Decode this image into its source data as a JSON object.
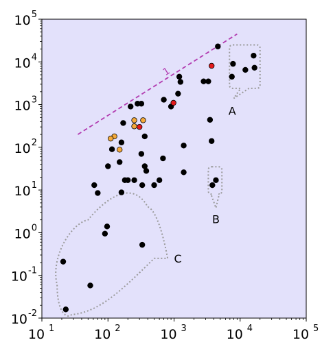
{
  "chart_data": {
    "type": "scatter",
    "title": "",
    "xlabel": "",
    "ylabel": "",
    "xscale": "log",
    "yscale": "log",
    "xlim": [
      10,
      100000
    ],
    "ylim": [
      0.01,
      100000
    ],
    "grid": false,
    "x_ticks": [
      {
        "label": "10",
        "exp": "1",
        "value": 10
      },
      {
        "label": "10",
        "exp": "2",
        "value": 100
      },
      {
        "label": "10",
        "exp": "3",
        "value": 1000
      },
      {
        "label": "10",
        "exp": "4",
        "value": 10000
      },
      {
        "label": "10",
        "exp": "5",
        "value": 100000
      }
    ],
    "y_ticks": [
      {
        "label": "10",
        "exp": "-2",
        "value": 0.01
      },
      {
        "label": "10",
        "exp": "-1",
        "value": 0.1
      },
      {
        "label": "10",
        "exp": "0",
        "value": 1
      },
      {
        "label": "10",
        "exp": "1",
        "value": 10
      },
      {
        "label": "10",
        "exp": "2",
        "value": 100
      },
      {
        "label": "10",
        "exp": "3",
        "value": 1000
      },
      {
        "label": "10",
        "exp": "4",
        "value": 10000
      },
      {
        "label": "10",
        "exp": "5",
        "value": 100000
      }
    ],
    "colors": {
      "background": "#e3e1fb",
      "black": "#000000",
      "orange": "#f4a93a",
      "red": "#e31a1c",
      "line": "#b23bb0",
      "callout": "#9a9a9a"
    },
    "series": [
      {
        "color": "black",
        "points": [
          [
            4600,
            23000
          ],
          [
            16000,
            14000
          ],
          [
            7800,
            9000
          ],
          [
            12000,
            6500
          ],
          [
            16500,
            7300
          ],
          [
            7500,
            4500
          ],
          [
            1200,
            4500
          ],
          [
            1250,
            3400
          ],
          [
            2800,
            3500
          ],
          [
            3300,
            3500
          ],
          [
            1150,
            1800
          ],
          [
            700,
            1300
          ],
          [
            900,
            900
          ],
          [
            280,
            1050
          ],
          [
            320,
            1050
          ],
          [
            220,
            900
          ],
          [
            170,
            370
          ],
          [
            360,
            180
          ],
          [
            3500,
            440
          ],
          [
            3700,
            140
          ],
          [
            115,
            90
          ],
          [
            160,
            130
          ],
          [
            320,
            70
          ],
          [
            360,
            36
          ],
          [
            380,
            28
          ],
          [
            150,
            45
          ],
          [
            100,
            36
          ],
          [
            680,
            55
          ],
          [
            1400,
            110
          ],
          [
            1400,
            26
          ],
          [
            180,
            17
          ],
          [
            200,
            17
          ],
          [
            250,
            17
          ],
          [
            600,
            17
          ],
          [
            500,
            13
          ],
          [
            330,
            13
          ],
          [
            62,
            13
          ],
          [
            160,
            8.8
          ],
          [
            70,
            8.5
          ],
          [
            3800,
            13
          ],
          [
            4300,
            17
          ],
          [
            97,
            1.4
          ],
          [
            90,
            0.95
          ],
          [
            330,
            0.52
          ],
          [
            21,
            0.21
          ],
          [
            54,
            0.058
          ],
          [
            23,
            0.016
          ]
        ]
      },
      {
        "color": "orange",
        "points": [
          [
            125,
            180
          ],
          [
            110,
            160
          ],
          [
            250,
            430
          ],
          [
            340,
            430
          ],
          [
            250,
            310
          ],
          [
            150,
            88
          ]
        ]
      },
      {
        "color": "red",
        "points": [
          [
            3700,
            8100
          ],
          [
            980,
            1100
          ],
          [
            300,
            300
          ]
        ]
      }
    ],
    "reference_line": {
      "label": "1",
      "x": [
        35,
        9000
      ],
      "y": [
        200,
        45000
      ],
      "style": "dashed"
    },
    "callouts": [
      {
        "label": "A",
        "box_x": [
          6900,
          20000
        ],
        "box_y": [
          2400,
          25000
        ],
        "tip": [
          8000,
          1400
        ],
        "label_at": [
          7600,
          720
        ]
      },
      {
        "label": "B",
        "box_x": [
          3300,
          5300
        ],
        "box_y": [
          8,
          35
        ],
        "tip": [
          4300,
          3.8
        ],
        "label_at": [
          4300,
          2.1
        ]
      },
      {
        "label": "C",
        "region": [
          [
            17,
            0.06
          ],
          [
            28,
            0.012
          ],
          [
            150,
            0.04
          ],
          [
            500,
            0.25
          ],
          [
            400,
            4
          ],
          [
            50,
            2
          ]
        ],
        "tip": [
          800,
          0.25
        ],
        "label_at": [
          1000,
          0.25
        ]
      }
    ]
  }
}
